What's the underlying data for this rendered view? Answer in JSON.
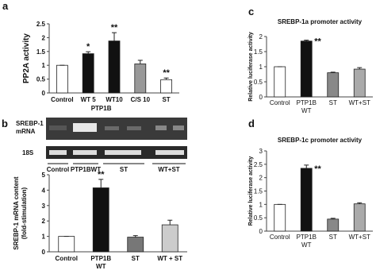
{
  "chart_data": [
    {
      "type": "bar",
      "panel": "a",
      "ylabel": "PP2A activity",
      "categories": [
        "Control",
        "WT 5",
        "WT10",
        "C/S 10",
        "ST"
      ],
      "group_label": "PTP1B",
      "values": [
        1.0,
        1.42,
        1.88,
        1.05,
        0.48
      ],
      "errors": [
        0.0,
        0.07,
        0.3,
        0.13,
        0.06
      ],
      "colors": [
        "#ffffff",
        "#111111",
        "#111111",
        "#999999",
        "#ffffff"
      ],
      "significance": [
        null,
        "*",
        "**",
        null,
        "**"
      ],
      "ylim": [
        0,
        2.5
      ],
      "yticks": [
        0,
        0.5,
        1,
        1.5,
        2,
        2.5
      ]
    },
    {
      "type": "bar",
      "ylabel": "SREBP-1 mRNA content\n(fold-stimulation)",
      "categories": [
        "Control",
        "PTP1B\nWT",
        "ST",
        "WT + ST"
      ],
      "values": [
        1.0,
        4.15,
        0.95,
        1.75
      ],
      "errors": [
        0.0,
        0.55,
        0.1,
        0.3
      ],
      "colors": [
        "#ffffff",
        "#111111",
        "#777777",
        "#cccccc"
      ],
      "significance": [
        null,
        "**",
        null,
        null
      ],
      "ylim": [
        0,
        5
      ],
      "yticks": [
        0,
        1,
        2,
        3,
        4,
        5
      ]
    },
    {
      "type": "bar",
      "panel": "c",
      "title": "SREBP-1a promoter activity",
      "ylabel": "Relative luciferase activity",
      "categories": [
        "Control",
        "PTP1B\nWT",
        "ST",
        "WT+ST"
      ],
      "values": [
        1.0,
        1.85,
        0.8,
        0.92
      ],
      "errors": [
        0.0,
        0.03,
        0.02,
        0.05
      ],
      "colors": [
        "#ffffff",
        "#111111",
        "#888888",
        "#aaaaaa"
      ],
      "significance": [
        null,
        "**",
        null,
        null
      ],
      "ylim": [
        0,
        2
      ],
      "yticks": [
        0,
        0.5,
        1,
        1.5,
        2
      ]
    },
    {
      "type": "bar",
      "panel": "d",
      "title": "SREBP-1c promoter activity",
      "ylabel": "Relative luciferase activity",
      "categories": [
        "Control",
        "PTP1B\nWT",
        "ST",
        "WT+ST"
      ],
      "values": [
        1.0,
        2.35,
        0.45,
        1.02
      ],
      "errors": [
        0.0,
        0.12,
        0.03,
        0.04
      ],
      "colors": [
        "#ffffff",
        "#111111",
        "#888888",
        "#aaaaaa"
      ],
      "significance": [
        null,
        "**",
        null,
        null
      ],
      "ylim": [
        0,
        3
      ],
      "yticks": [
        0,
        0.5,
        1,
        1.5,
        2,
        2.5,
        3
      ]
    }
  ],
  "blot": {
    "panel": "b",
    "target_label": "SREBP-1\nmRNA",
    "reference_label": "18S",
    "lanes": [
      "Control",
      "PTP1BWT",
      "ST",
      "WT+ST"
    ]
  }
}
